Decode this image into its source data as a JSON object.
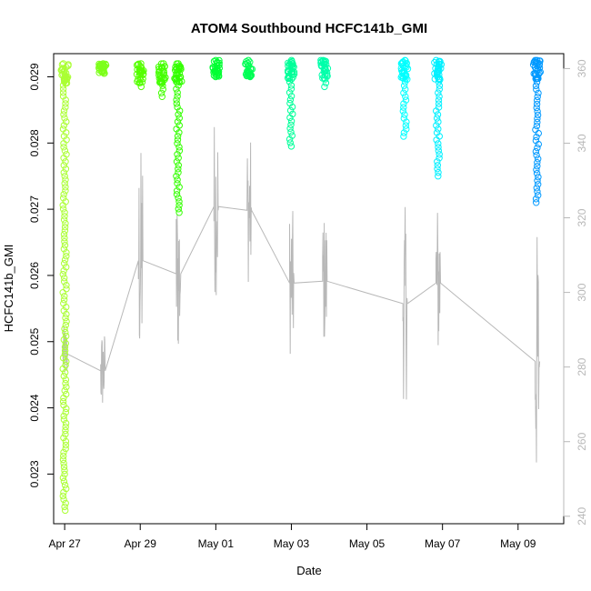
{
  "chart_data": {
    "type": "scatter",
    "title": "ATOM4 Southbound HCFC141b_GMI",
    "xlabel": "Date",
    "ylabel": "HCFC141b_GMI",
    "x_ticks": [
      "Apr 27",
      "Apr 29",
      "May 01",
      "May 03",
      "May 05",
      "May 07",
      "May 09"
    ],
    "y_ticks": [
      "0.023",
      "0.024",
      "0.025",
      "0.026",
      "0.027",
      "0.028",
      "0.029"
    ],
    "y2_ticks": [
      "240",
      "260",
      "280",
      "300",
      "320",
      "340",
      "360"
    ],
    "xlim": [
      "2018-04-26T17:00",
      "2018-05-10T05:00"
    ],
    "ylim": [
      0.02225,
      0.02935
    ],
    "y2lim": [
      238,
      364
    ],
    "grid": false,
    "series": [
      {
        "type": "scatter",
        "color_scale": [
          "#aaff33",
          "#55ff00",
          "#00ff44",
          "#00ffaa",
          "#00ffff",
          "#0099ff"
        ],
        "segments": [
          {
            "x": "2018-04-27T00:00",
            "y_min": 0.02245,
            "y_max": 0.0292,
            "color": "#aaff33"
          },
          {
            "x": "2018-04-28T00:00",
            "y_min": 0.02905,
            "y_max": 0.0292,
            "color": "#7dff1a"
          },
          {
            "x": "2018-04-29T00:00",
            "y_min": 0.02885,
            "y_max": 0.0292,
            "color": "#55ff00"
          },
          {
            "x": "2018-04-29T14:00",
            "y_min": 0.0287,
            "y_max": 0.0292,
            "color": "#44ff00"
          },
          {
            "x": "2018-04-30T00:00",
            "y_min": 0.02695,
            "y_max": 0.0292,
            "color": "#33ff00"
          },
          {
            "x": "2018-05-01T00:00",
            "y_min": 0.029,
            "y_max": 0.02925,
            "color": "#00ff33"
          },
          {
            "x": "2018-05-01T21:00",
            "y_min": 0.029,
            "y_max": 0.02925,
            "color": "#00ff55"
          },
          {
            "x": "2018-05-03T00:00",
            "y_min": 0.02795,
            "y_max": 0.02925,
            "color": "#00ff99"
          },
          {
            "x": "2018-05-03T21:00",
            "y_min": 0.02885,
            "y_max": 0.02925,
            "color": "#00ffaa"
          },
          {
            "x": "2018-05-06T00:00",
            "y_min": 0.0281,
            "y_max": 0.02925,
            "color": "#00ffff"
          },
          {
            "x": "2018-05-06T21:00",
            "y_min": 0.0275,
            "y_max": 0.02925,
            "color": "#00f0ff"
          },
          {
            "x": "2018-05-09T12:00",
            "y_min": 0.0271,
            "y_max": 0.02925,
            "color": "#0099ff"
          }
        ]
      },
      {
        "type": "line",
        "color": "#b8b8b8",
        "axis": "right",
        "x": [
          "2018-04-27T00:00",
          "2018-04-28T00:00",
          "2018-04-29T00:00",
          "2018-04-30T00:00",
          "2018-05-01T00:00",
          "2018-05-01T21:00",
          "2018-05-03T00:00",
          "2018-05-03T21:00",
          "2018-05-06T00:00",
          "2018-05-06T21:00",
          "2018-05-09T12:00"
        ],
        "y_min": [
          276,
          268,
          278,
          282,
          299,
          302,
          283,
          285,
          271,
          280,
          246
        ],
        "y_max": [
          291,
          290,
          339,
          328,
          347,
          342,
          322,
          321,
          323,
          325,
          317
        ]
      }
    ]
  }
}
